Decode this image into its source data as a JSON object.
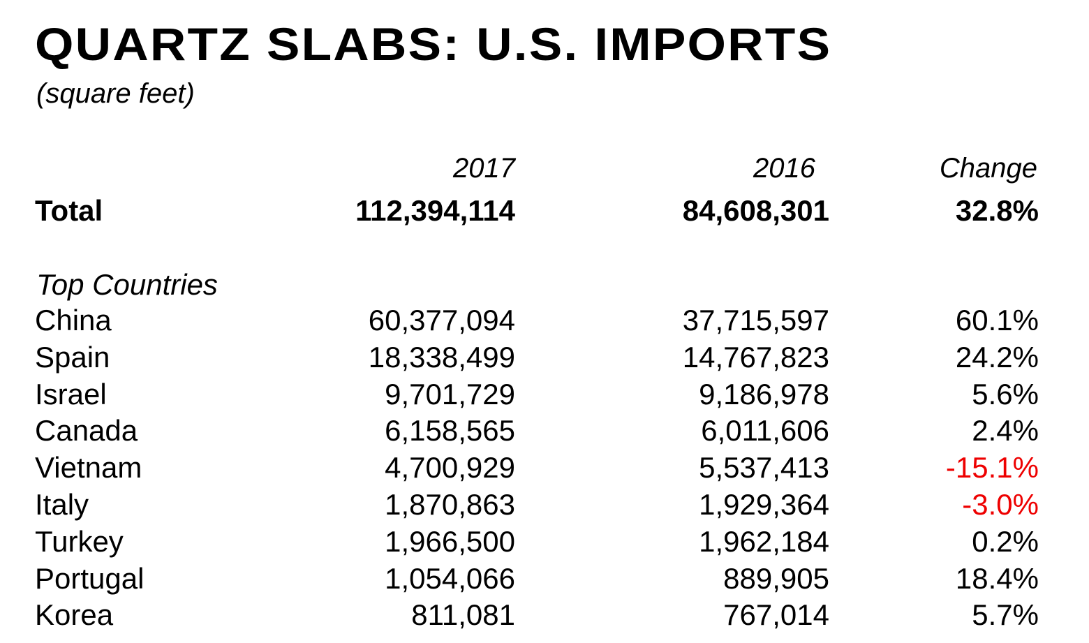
{
  "header": {
    "title": "QUARTZ SLABS: U.S. IMPORTS",
    "subtitle": "(square feet)"
  },
  "table": {
    "columns": [
      "2017",
      "2016",
      "Change"
    ],
    "total": [
      "Total",
      "112,394,114",
      "84,608,301",
      "32.8%"
    ],
    "section_label": "Top Countries",
    "rows": [
      [
        "China",
        "60,377,094",
        "37,715,597",
        "60.1%"
      ],
      [
        "Spain",
        "18,338,499",
        "14,767,823",
        "24.2%"
      ],
      [
        "Israel",
        "9,701,729",
        "9,186,978",
        "5.6%"
      ],
      [
        "Canada",
        "6,158,565",
        "6,011,606",
        "2.4%"
      ],
      [
        "Vietnam",
        "4,700,929",
        "5,537,413",
        "-15.1%"
      ],
      [
        "Italy",
        "1,870,863",
        "1,929,364",
        "-3.0%"
      ],
      [
        "Turkey",
        "1,966,500",
        "1,962,184",
        "0.2%"
      ],
      [
        "Portugal",
        "1,054,066",
        "889,905",
        "18.4%"
      ],
      [
        "Korea",
        "811,081",
        "767,014",
        "5.7%"
      ]
    ]
  }
}
